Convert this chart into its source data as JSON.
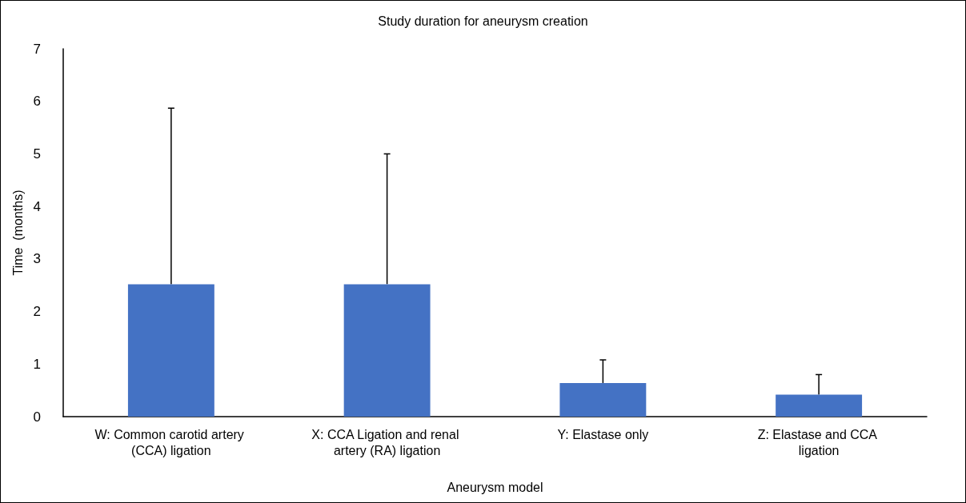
{
  "chart_data": {
    "type": "bar",
    "title": "Study duration for aneurysm creation",
    "xlabel": "Aneurysm model",
    "ylabel": "Time  (months)",
    "categories": [
      "W: Common carotid artery (CCA) ligation",
      "X: CCA Ligation and renal artery (RA) ligation",
      "Y: Elastase only",
      "Z: Elastase and CCA ligation"
    ],
    "values": [
      2.52,
      2.52,
      0.64,
      0.42
    ],
    "errors": [
      [
        2.52,
        5.87
      ],
      [
        2.52,
        5.0
      ],
      [
        0.64,
        1.08
      ],
      [
        0.42,
        0.8
      ]
    ],
    "color": "#4472c4",
    "ylim": [
      0,
      7
    ],
    "yticks": [
      0,
      1,
      2,
      3,
      4,
      5,
      6,
      7
    ],
    "grid": false
  }
}
